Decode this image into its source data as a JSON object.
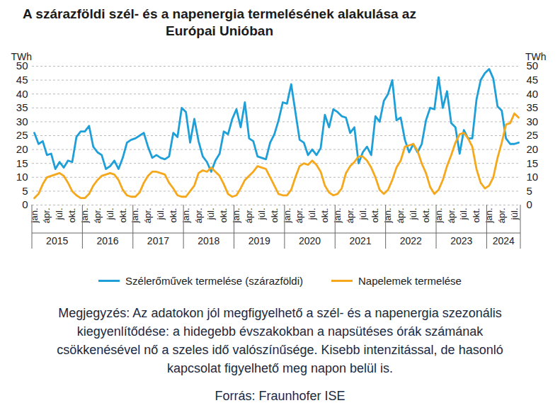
{
  "chart_data": {
    "type": "line",
    "title": "A szárazföldi szél- és a napenergia termelésének alakulása az Európai Unióban",
    "ylabel": "TWh",
    "y2label": "TWh",
    "note": "Megjegyzés: Az adatokon jól megfigyelhető a szél- és a napenergia szezonális kiegyenlítődése: a hidegebb évszakokban a napsütéses órák számának csökkenésével nő a szeles idő valószínűsége. Kisebb intenzitással, de hasonló kapcsolat figyelhető meg napon belül is.",
    "source": "Forrás: Fraunhofer ISE",
    "categories": [
      "jan.",
      null,
      null,
      "ápr.",
      null,
      null,
      "júl.",
      null,
      null,
      "okt.",
      null,
      null,
      "jan.",
      null,
      null,
      "ápr.",
      null,
      null,
      "júl.",
      null,
      null,
      "okt.",
      null,
      null,
      "jan.",
      null,
      null,
      "ápr.",
      null,
      null,
      "júl.",
      null,
      null,
      "okt.",
      null,
      null,
      "jan.",
      null,
      null,
      "ápr.",
      null,
      null,
      "júl.",
      null,
      null,
      "okt.",
      null,
      null,
      "jan.",
      null,
      null,
      "ápr.",
      null,
      null,
      "júl.",
      null,
      null,
      "okt.",
      null,
      null,
      "jan.",
      null,
      null,
      "ápr.",
      null,
      null,
      "júl.",
      null,
      null,
      "okt.",
      null,
      null,
      "jan.",
      null,
      null,
      "ápr.",
      null,
      null,
      "júl.",
      null,
      null,
      "okt.",
      null,
      null,
      "jan.",
      null,
      null,
      "ápr.",
      null,
      null,
      "júl.",
      null,
      null,
      "okt.",
      null,
      null,
      "jan.",
      null,
      null,
      "ápr.",
      null,
      null,
      "júl.",
      null,
      null,
      "okt.",
      null,
      null,
      "jan.",
      null,
      null,
      "ápr.",
      null,
      null,
      "júl.",
      null
    ],
    "x_groups": [
      "2015",
      "2015",
      "2015",
      "2015",
      "2015",
      "2015",
      "2015",
      "2015",
      "2015",
      "2015",
      "2015",
      "2015",
      "2016",
      "2016",
      "2016",
      "2016",
      "2016",
      "2016",
      "2016",
      "2016",
      "2016",
      "2016",
      "2016",
      "2016",
      "2017",
      "2017",
      "2017",
      "2017",
      "2017",
      "2017",
      "2017",
      "2017",
      "2017",
      "2017",
      "2017",
      "2017",
      "2018",
      "2018",
      "2018",
      "2018",
      "2018",
      "2018",
      "2018",
      "2018",
      "2018",
      "2018",
      "2018",
      "2018",
      "2019",
      "2019",
      "2019",
      "2019",
      "2019",
      "2019",
      "2019",
      "2019",
      "2019",
      "2019",
      "2019",
      "2019",
      "2020",
      "2020",
      "2020",
      "2020",
      "2020",
      "2020",
      "2020",
      "2020",
      "2020",
      "2020",
      "2020",
      "2020",
      "2021",
      "2021",
      "2021",
      "2021",
      "2021",
      "2021",
      "2021",
      "2021",
      "2021",
      "2021",
      "2021",
      "2021",
      "2022",
      "2022",
      "2022",
      "2022",
      "2022",
      "2022",
      "2022",
      "2022",
      "2022",
      "2022",
      "2022",
      "2022",
      "2023",
      "2023",
      "2023",
      "2023",
      "2023",
      "2023",
      "2023",
      "2023",
      "2023",
      "2023",
      "2023",
      "2023",
      "2024",
      "2024",
      "2024",
      "2024",
      "2024",
      "2024",
      "2024",
      "2024"
    ],
    "series": [
      {
        "name": "Szélerőművek termelése (szárazföldi)",
        "color": "#1f9fd8",
        "values": [
          26,
          22,
          23,
          18,
          18.5,
          13,
          15.5,
          13.5,
          16,
          15.5,
          24.5,
          26.5,
          26.5,
          28.5,
          21,
          19,
          18,
          13,
          14,
          16,
          13,
          17,
          22.5,
          23.5,
          24,
          25,
          26,
          21,
          17,
          18,
          17,
          16.5,
          17.5,
          26,
          24.5,
          35,
          33.5,
          22.5,
          31,
          23,
          17.5,
          15.5,
          12,
          16,
          18.5,
          26.5,
          25.5,
          31,
          34.5,
          28,
          37,
          24,
          23,
          17.5,
          17,
          16.5,
          22.5,
          25.5,
          30.5,
          37,
          36.5,
          43.5,
          33.5,
          23.5,
          22.5,
          18,
          20,
          18,
          20.5,
          32.5,
          28,
          34.5,
          33.5,
          32,
          31.5,
          26,
          28,
          15,
          19,
          21,
          18,
          32,
          30,
          37.5,
          40,
          45,
          30.5,
          31.5,
          23.5,
          19,
          22,
          19,
          22,
          30.5,
          35,
          34.5,
          46,
          35,
          41,
          29.5,
          28,
          18.5,
          27,
          24,
          24,
          38,
          45,
          47.5,
          49,
          45.5,
          35.5,
          34,
          24,
          22,
          22,
          22.5
        ]
      },
      {
        "name": "Napelemek termelése",
        "color": "#f5a81c",
        "values": [
          2.5,
          4,
          7.5,
          10,
          10.5,
          11,
          11.5,
          10.5,
          8,
          5,
          3.5,
          2.5,
          2.5,
          4,
          7,
          9,
          10.5,
          11,
          11.5,
          11,
          9,
          5.5,
          3.5,
          3,
          3,
          4.5,
          8,
          10.5,
          12,
          12,
          11.5,
          11,
          8,
          6,
          3.5,
          3,
          3,
          5,
          7,
          11.5,
          12.5,
          12,
          13.5,
          12,
          10.5,
          7.5,
          4,
          3,
          3.5,
          6,
          9,
          10.5,
          12,
          14,
          13.5,
          13,
          10,
          7,
          4,
          3.5,
          3.5,
          5.5,
          10,
          14,
          15,
          14.5,
          16,
          14.5,
          12,
          7,
          4.5,
          3.5,
          4,
          6,
          11.5,
          14,
          15.5,
          17.5,
          17.5,
          16,
          13.5,
          10,
          5.5,
          4,
          5.5,
          9,
          13.5,
          16,
          21,
          21.5,
          22,
          19.5,
          15,
          11.5,
          6.5,
          4,
          5.5,
          9,
          14,
          18,
          22.5,
          25.5,
          26,
          24,
          21,
          13,
          8,
          6,
          7,
          10,
          17,
          22.5,
          29,
          29.5,
          33,
          31.5
        ]
      }
    ],
    "ylim": [
      0,
      50
    ],
    "yticks": [
      0,
      5,
      10,
      15,
      20,
      25,
      30,
      35,
      40,
      45,
      50
    ],
    "y2lim": [
      0,
      50
    ],
    "y2ticks": [
      0,
      5,
      10,
      15,
      20,
      25,
      30,
      35,
      40,
      45,
      50
    ],
    "grid": true,
    "legend": "bottom"
  }
}
